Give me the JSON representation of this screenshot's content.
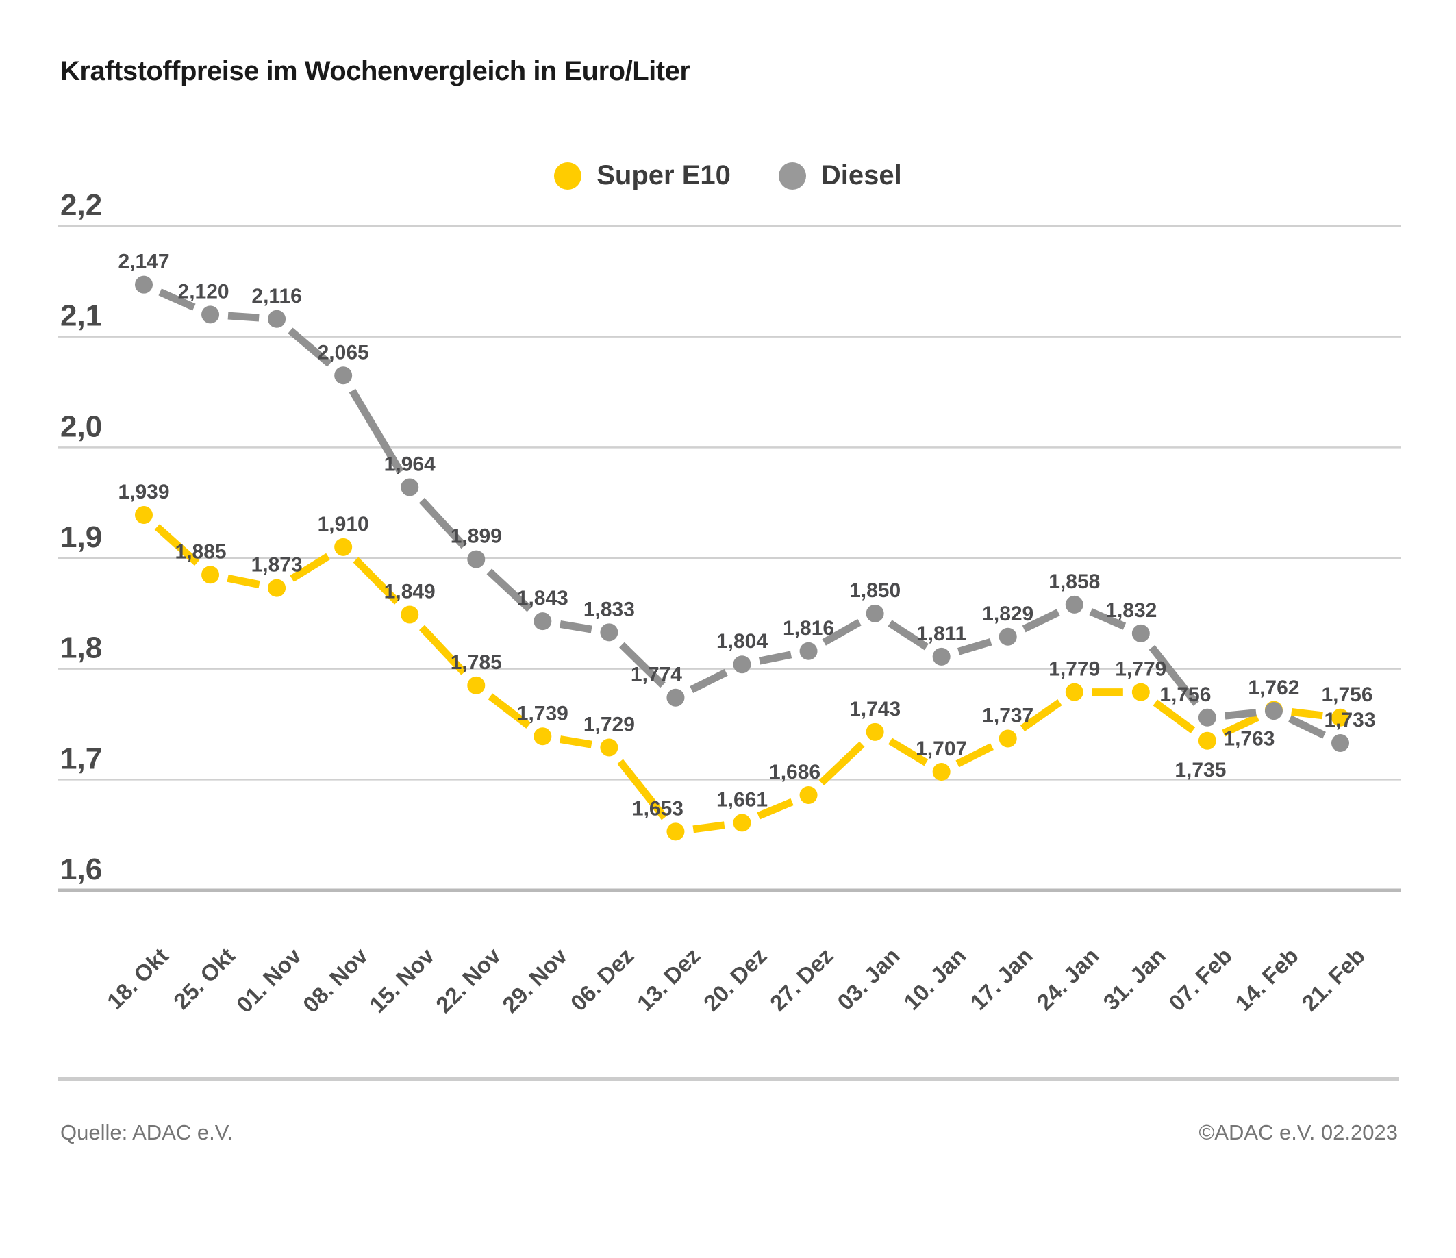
{
  "title": "Kraftstoffpreise im Wochenvergleich in Euro/Liter",
  "legend": {
    "items": [
      {
        "label": "Super E10",
        "color": "#FFCC00"
      },
      {
        "label": "Diesel",
        "color": "#999999"
      }
    ]
  },
  "footer": {
    "source": "Quelle: ADAC e.V.",
    "copyright": "©ADAC e.V. 02.2023"
  },
  "chart_data": {
    "type": "line",
    "title": "Kraftstoffpreise im Wochenvergleich in Euro/Liter",
    "xlabel": "",
    "ylabel": "Euro/Liter",
    "grid": true,
    "legend_position": "top-center",
    "decimal_separator": ",",
    "ylim": [
      1.6,
      2.2
    ],
    "ytick_step": 0.1,
    "yticks": [
      "1,6",
      "1,7",
      "1,8",
      "1,9",
      "2,0",
      "2,1",
      "2,2"
    ],
    "categories": [
      "18. Okt",
      "25. Okt",
      "01. Nov",
      "08. Nov",
      "15. Nov",
      "22. Nov",
      "29. Nov",
      "06. Dez",
      "13. Dez",
      "20. Dez",
      "27. Dez",
      "03. Jan",
      "10. Jan",
      "17. Jan",
      "24. Jan",
      "31. Jan",
      "07. Feb",
      "14. Feb",
      "21. Feb"
    ],
    "series": [
      {
        "name": "Super E10",
        "color": "#FFCC00",
        "values": [
          1.939,
          1.885,
          1.873,
          1.91,
          1.849,
          1.785,
          1.739,
          1.729,
          1.653,
          1.661,
          1.686,
          1.743,
          1.707,
          1.737,
          1.779,
          1.779,
          1.735,
          1.763,
          1.756
        ],
        "labels_below": [
          16,
          17
        ],
        "label_dx": {
          "1": -14,
          "8": -26,
          "10": -20,
          "16": -10,
          "17": -36,
          "18": 10
        }
      },
      {
        "name": "Diesel",
        "color": "#919191",
        "values": [
          2.147,
          2.12,
          2.116,
          2.065,
          1.964,
          1.899,
          1.843,
          1.833,
          1.774,
          1.804,
          1.816,
          1.85,
          1.811,
          1.829,
          1.858,
          1.832,
          1.756,
          1.762,
          1.733
        ],
        "labels_below": [],
        "label_dx": {
          "1": -10,
          "8": -28,
          "15": -14,
          "16": -32,
          "18": 14
        }
      }
    ]
  }
}
